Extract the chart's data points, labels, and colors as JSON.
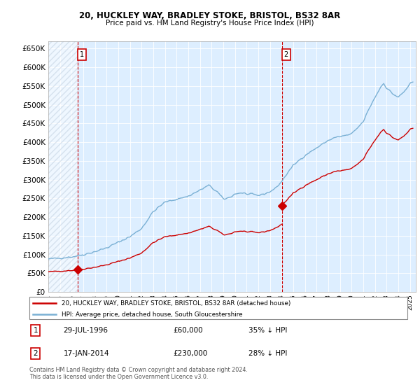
{
  "title_line1": "20, HUCKLEY WAY, BRADLEY STOKE, BRISTOL, BS32 8AR",
  "title_line2": "Price paid vs. HM Land Registry's House Price Index (HPI)",
  "legend_red": "20, HUCKLEY WAY, BRADLEY STOKE, BRISTOL, BS32 8AR (detached house)",
  "legend_blue": "HPI: Average price, detached house, South Gloucestershire",
  "annotation1_date": "29-JUL-1996",
  "annotation1_price": "£60,000",
  "annotation1_hpi": "35% ↓ HPI",
  "annotation1_year": 1996.54,
  "annotation1_value": 60000,
  "annotation2_date": "17-JAN-2014",
  "annotation2_price": "£230,000",
  "annotation2_hpi": "28% ↓ HPI",
  "annotation2_year": 2014.04,
  "annotation2_value": 230000,
  "footer": "Contains HM Land Registry data © Crown copyright and database right 2024.\nThis data is licensed under the Open Government Licence v3.0.",
  "ylim_max": 670000,
  "ytick_step": 50000,
  "xmin": 1994.0,
  "xmax": 2025.5,
  "red_color": "#cc0000",
  "blue_color": "#7ab0d4",
  "grid_color": "#c8d8e8",
  "background_color": "#ffffff",
  "plot_bg_color": "#ddeeff",
  "hatch_color": "#c0d0e0"
}
